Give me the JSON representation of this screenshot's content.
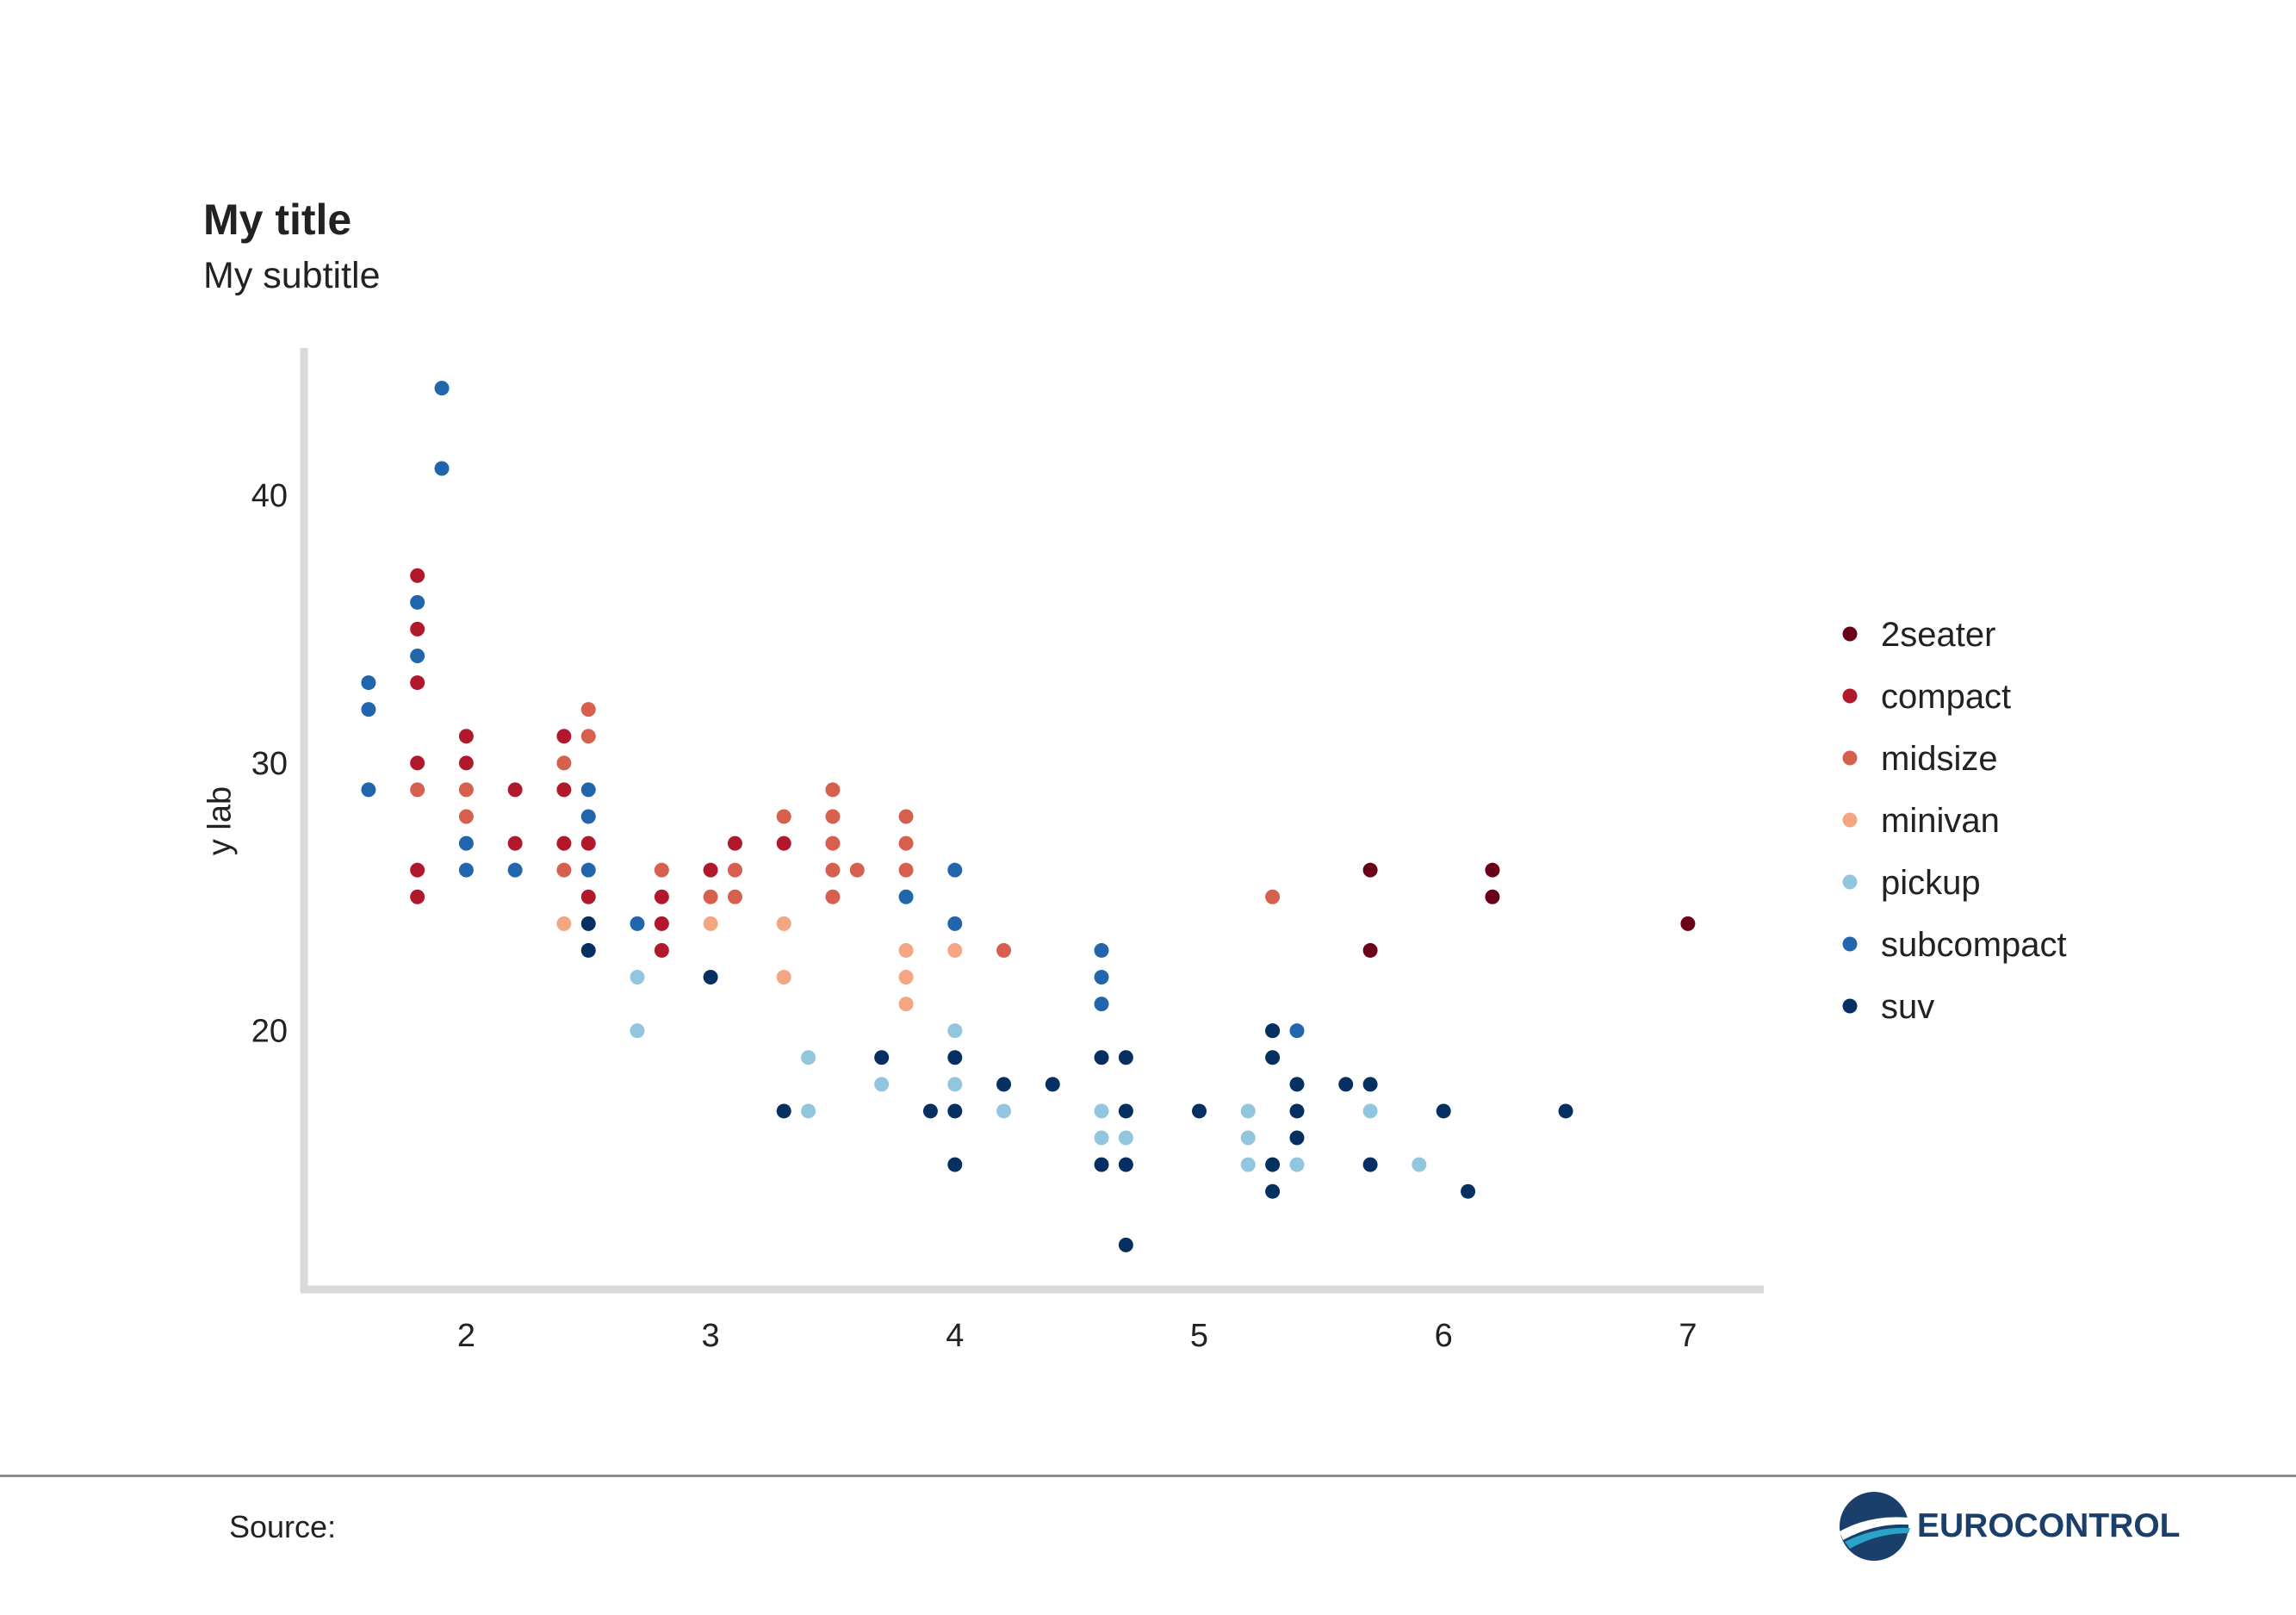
{
  "chart_data": {
    "type": "scatter",
    "title": "My title",
    "subtitle": "My subtitle",
    "ylabel": "y lab",
    "xlabel": "",
    "xlim": [
      1.35,
      7.3
    ],
    "ylim": [
      10.5,
      45.5
    ],
    "x_ticks": [
      2,
      3,
      4,
      5,
      6,
      7
    ],
    "y_ticks": [
      20,
      30,
      40
    ],
    "grid": false,
    "legend_position": "right",
    "series": [
      {
        "name": "2seater",
        "color": "#6b0119",
        "points": [
          [
            5.7,
            26
          ],
          [
            5.7,
            23
          ],
          [
            6.2,
            26
          ],
          [
            6.2,
            25
          ],
          [
            7.0,
            24
          ]
        ]
      },
      {
        "name": "compact",
        "color": "#b2182b",
        "points": [
          [
            1.8,
            37
          ],
          [
            1.8,
            35
          ],
          [
            1.8,
            33
          ],
          [
            1.8,
            30
          ],
          [
            1.8,
            26
          ],
          [
            1.8,
            25
          ],
          [
            2.0,
            31
          ],
          [
            2.0,
            30
          ],
          [
            2.2,
            29
          ],
          [
            2.2,
            27
          ],
          [
            2.4,
            31
          ],
          [
            2.4,
            29
          ],
          [
            2.4,
            27
          ],
          [
            2.5,
            27
          ],
          [
            2.5,
            25
          ],
          [
            2.8,
            25
          ],
          [
            2.8,
            24
          ],
          [
            2.8,
            23
          ],
          [
            3.0,
            26
          ],
          [
            3.1,
            27
          ],
          [
            3.3,
            27
          ]
        ]
      },
      {
        "name": "midsize",
        "color": "#d6604d",
        "points": [
          [
            1.8,
            29
          ],
          [
            2.0,
            29
          ],
          [
            2.0,
            28
          ],
          [
            2.4,
            30
          ],
          [
            2.4,
            26
          ],
          [
            2.5,
            32
          ],
          [
            2.5,
            31
          ],
          [
            2.8,
            26
          ],
          [
            3.0,
            25
          ],
          [
            3.1,
            26
          ],
          [
            3.1,
            25
          ],
          [
            3.3,
            28
          ],
          [
            3.5,
            29
          ],
          [
            3.5,
            28
          ],
          [
            3.5,
            27
          ],
          [
            3.5,
            26
          ],
          [
            3.5,
            25
          ],
          [
            3.6,
            26
          ],
          [
            3.8,
            28
          ],
          [
            3.8,
            27
          ],
          [
            3.8,
            26
          ],
          [
            4.2,
            23
          ],
          [
            5.3,
            25
          ]
        ]
      },
      {
        "name": "minivan",
        "color": "#f4a582",
        "points": [
          [
            2.4,
            24
          ],
          [
            3.0,
            24
          ],
          [
            3.3,
            24
          ],
          [
            3.3,
            22
          ],
          [
            3.8,
            23
          ],
          [
            3.8,
            22
          ],
          [
            3.8,
            21
          ],
          [
            4.0,
            23
          ]
        ]
      },
      {
        "name": "pickup",
        "color": "#92c5de",
        "points": [
          [
            2.7,
            22
          ],
          [
            2.7,
            20
          ],
          [
            3.4,
            19
          ],
          [
            3.4,
            17
          ],
          [
            3.7,
            18
          ],
          [
            4.0,
            20
          ],
          [
            4.0,
            18
          ],
          [
            4.2,
            17
          ],
          [
            4.6,
            17
          ],
          [
            4.6,
            16
          ],
          [
            4.7,
            17
          ],
          [
            4.7,
            16
          ],
          [
            5.2,
            17
          ],
          [
            5.2,
            16
          ],
          [
            5.2,
            15
          ],
          [
            5.4,
            15
          ],
          [
            5.7,
            17
          ],
          [
            5.9,
            15
          ]
        ]
      },
      {
        "name": "subcompact",
        "color": "#2166ac",
        "points": [
          [
            1.6,
            33
          ],
          [
            1.6,
            32
          ],
          [
            1.6,
            29
          ],
          [
            1.8,
            36
          ],
          [
            1.8,
            34
          ],
          [
            1.9,
            44
          ],
          [
            1.9,
            41
          ],
          [
            2.0,
            27
          ],
          [
            2.0,
            26
          ],
          [
            2.2,
            26
          ],
          [
            2.5,
            29
          ],
          [
            2.5,
            28
          ],
          [
            2.5,
            26
          ],
          [
            2.7,
            24
          ],
          [
            3.8,
            25
          ],
          [
            4.0,
            26
          ],
          [
            4.0,
            24
          ],
          [
            4.6,
            23
          ],
          [
            4.6,
            22
          ],
          [
            4.6,
            21
          ],
          [
            5.3,
            20
          ],
          [
            5.4,
            20
          ]
        ]
      },
      {
        "name": "suv",
        "color": "#053061",
        "points": [
          [
            2.5,
            24
          ],
          [
            2.5,
            23
          ],
          [
            3.0,
            22
          ],
          [
            3.3,
            17
          ],
          [
            3.7,
            19
          ],
          [
            3.9,
            17
          ],
          [
            4.0,
            19
          ],
          [
            4.0,
            17
          ],
          [
            4.0,
            15
          ],
          [
            4.2,
            18
          ],
          [
            4.4,
            18
          ],
          [
            4.6,
            19
          ],
          [
            4.6,
            15
          ],
          [
            4.7,
            19
          ],
          [
            4.7,
            17
          ],
          [
            4.7,
            15
          ],
          [
            4.7,
            12
          ],
          [
            5.0,
            17
          ],
          [
            5.3,
            20
          ],
          [
            5.3,
            19
          ],
          [
            5.3,
            15
          ],
          [
            5.3,
            14
          ],
          [
            5.4,
            18
          ],
          [
            5.4,
            17
          ],
          [
            5.4,
            16
          ],
          [
            5.6,
            18
          ],
          [
            5.7,
            18
          ],
          [
            5.7,
            15
          ],
          [
            6.0,
            17
          ],
          [
            6.1,
            14
          ],
          [
            6.5,
            17
          ]
        ]
      }
    ]
  },
  "footer": {
    "source_label": "Source:",
    "logo_text": "EUROCONTROL"
  }
}
